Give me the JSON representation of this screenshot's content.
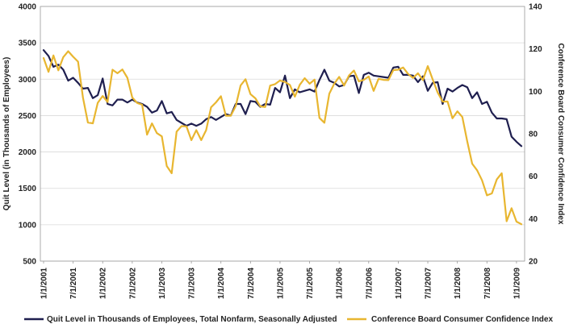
{
  "chart_data": {
    "type": "line",
    "xlabel": "",
    "ylabel": "Quit Level (in Thousands of Employees)",
    "y2label": "Conference Board Consumer Confidence Index",
    "ylim": [
      500,
      4000
    ],
    "y2lim": [
      20,
      140
    ],
    "yticks": [
      "500",
      "1000",
      "1500",
      "2000",
      "2500",
      "3000",
      "3500",
      "4000"
    ],
    "y2ticks": [
      "20",
      "40",
      "60",
      "80",
      "100",
      "120",
      "140"
    ],
    "xticks": [
      "1/1/2001",
      "7/1/2001",
      "1/1/2002",
      "7/1/2002",
      "1/1/2003",
      "7/1/2003",
      "1/1/2004",
      "7/1/2004",
      "1/1/2005",
      "7/1/2005",
      "1/1/2006",
      "7/1/2006",
      "1/1/2007",
      "7/1/2007",
      "1/1/2008",
      "7/1/2008",
      "1/1/2009"
    ],
    "grid": true,
    "legend_position": "bottom",
    "series": [
      {
        "name": "Quit Level in Thousands of Employees, Total Nonfarm, Seasonally Adjusted",
        "axis": "left",
        "color": "#1f1f4f",
        "values": [
          3400,
          3320,
          3170,
          3200,
          3130,
          2980,
          3020,
          2950,
          2870,
          2880,
          2740,
          2780,
          3010,
          2660,
          2640,
          2720,
          2720,
          2680,
          2720,
          2680,
          2660,
          2620,
          2540,
          2570,
          2700,
          2530,
          2550,
          2440,
          2400,
          2360,
          2390,
          2360,
          2390,
          2450,
          2480,
          2440,
          2480,
          2520,
          2500,
          2660,
          2660,
          2520,
          2700,
          2690,
          2620,
          2660,
          2650,
          2880,
          2820,
          3050,
          2740,
          2860,
          2820,
          2840,
          2860,
          2830,
          2990,
          3130,
          2980,
          2950,
          2900,
          2920,
          3040,
          3050,
          2810,
          3060,
          3090,
          3050,
          3040,
          3030,
          3020,
          3160,
          3170,
          3060,
          3060,
          3050,
          2960,
          3040,
          2840,
          2950,
          2960,
          2660,
          2870,
          2830,
          2880,
          2920,
          2890,
          2740,
          2820,
          2660,
          2690,
          2540,
          2460,
          2460,
          2450,
          2210,
          2140,
          2080
        ]
      },
      {
        "name": "Conference Board Consumer Confidence Index",
        "axis": "right",
        "color": "#e8b630",
        "values": [
          115.7,
          109.2,
          116.9,
          109.9,
          116.1,
          118.9,
          116.3,
          114.0,
          97.0,
          85.3,
          84.9,
          94.6,
          97.8,
          95.0,
          110.2,
          108.5,
          110.3,
          106.4,
          97.1,
          94.5,
          93.7,
          79.6,
          84.9,
          80.3,
          78.8,
          64.8,
          61.4,
          81.0,
          83.6,
          83.5,
          77.0,
          81.7,
          77.0,
          81.7,
          92.5,
          94.8,
          97.7,
          88.5,
          88.5,
          93.0,
          102.8,
          105.7,
          98.7,
          96.7,
          92.9,
          92.6,
          102.7,
          103.4,
          105.1,
          104.4,
          103.0,
          97.5,
          103.1,
          106.2,
          103.6,
          105.5,
          87.5,
          85.2,
          98.9,
          103.6,
          106.8,
          102.7,
          107.5,
          109.8,
          104.7,
          105.4,
          107.0,
          100.2,
          105.9,
          105.4,
          105.3,
          110.0,
          110.2,
          111.2,
          108.2,
          106.3,
          108.5,
          105.3,
          111.9,
          105.6,
          99.5,
          95.2,
          95.2,
          87.3,
          90.6,
          87.9,
          76.4,
          65.9,
          62.8,
          58.1,
          51.0,
          51.9,
          58.5,
          61.4,
          38.8,
          44.9,
          38.6,
          37.4
        ]
      }
    ]
  }
}
